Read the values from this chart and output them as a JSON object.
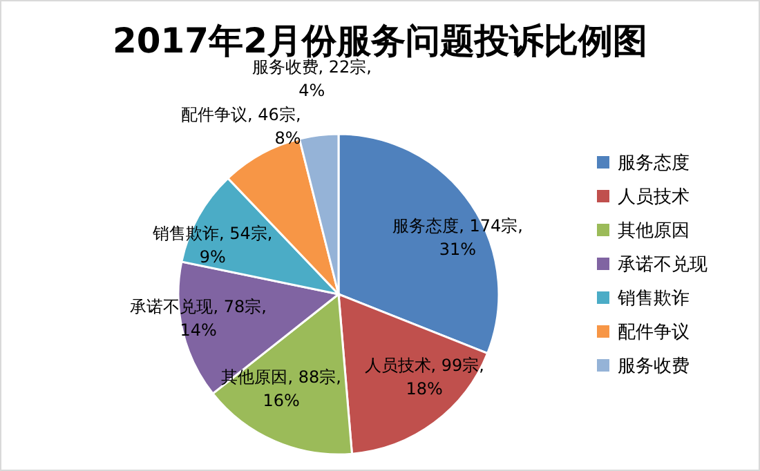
{
  "chart_data": {
    "type": "pie",
    "title": "2017年2月份服务问题投诉比例图",
    "categories": [
      "服务态度",
      "人员技术",
      "其他原因",
      "承诺不兑现",
      "销售欺诈",
      "配件争议",
      "服务收费"
    ],
    "values": [
      174,
      99,
      88,
      78,
      54,
      46,
      22
    ],
    "colors": [
      "#4f81bd",
      "#c0504d",
      "#9bbb59",
      "#8064a2",
      "#4bacc6",
      "#f79646",
      "#95b3d7"
    ],
    "value_labels": [
      "服务态度, 174宗, 31%",
      "人员技术, 99宗, 18%",
      "其他原因, 88宗, 16%",
      "承诺不兑现, 78宗, 14%",
      "销售欺诈, 54宗, 9%",
      "配件争议, 46宗, 8%",
      "服务收费, 22宗, 4%"
    ],
    "legend": "right"
  }
}
